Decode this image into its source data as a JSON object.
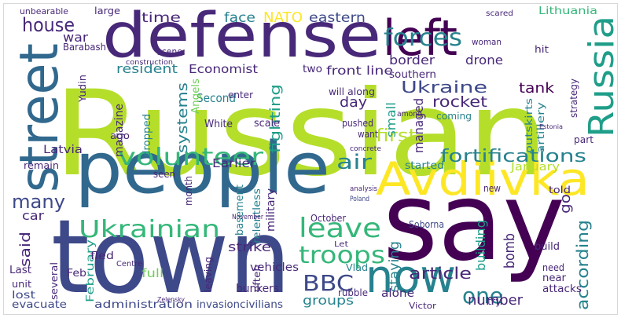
{
  "words": [
    "Russian",
    "say",
    "town",
    "people",
    "defense",
    "left",
    "street",
    "Avdiivka",
    "Russia",
    "now",
    "forces",
    "volunteer",
    "leave",
    "Ukrainian",
    "troops",
    "BBC",
    "house",
    "many",
    "fortifications",
    "first",
    "air",
    "Ukraine",
    "article",
    "one",
    "according",
    "tank",
    "rocket",
    "NATO",
    "eastern",
    "face",
    "time",
    "war",
    "border",
    "drone",
    "Lithuania",
    "systems",
    "Second",
    "resident",
    "Economist",
    "two",
    "front line",
    "day",
    "fighting",
    "small",
    "managed",
    "car",
    "said",
    "strike",
    "Last",
    "staying",
    "building",
    "bomb",
    "number",
    "groups",
    "vehicles",
    "bunkers",
    "invasion",
    "civilians",
    "administration",
    "evacuate",
    "lost",
    "unit",
    "February",
    "full",
    "fled",
    "Feb",
    "Latvia",
    "Earlier",
    "White",
    "scale",
    "magazine",
    "dropped",
    "Angels",
    "military",
    "relentless",
    "basement",
    "Soborna",
    "October",
    "Poland",
    "alone",
    "rubble",
    "Vlad",
    "near",
    "need",
    "attacks",
    "try",
    "Victor",
    "go",
    "told",
    "part",
    "January",
    "started",
    "new",
    "build",
    "outskirts",
    "artillery",
    "strategy",
    "hit",
    "scared",
    "woman",
    "southern",
    "coming",
    "among",
    "will",
    "along",
    "pushed",
    "want",
    "Yudin",
    "Barabash",
    "large",
    "unbearable",
    "scene",
    "construction",
    "month",
    "seen",
    "remain",
    "ago",
    "enter",
    "November",
    "Centre",
    "several",
    "often",
    "leaving",
    "Zelensky",
    "Let",
    "Estonia",
    "concrete",
    "analysis"
  ]
}
